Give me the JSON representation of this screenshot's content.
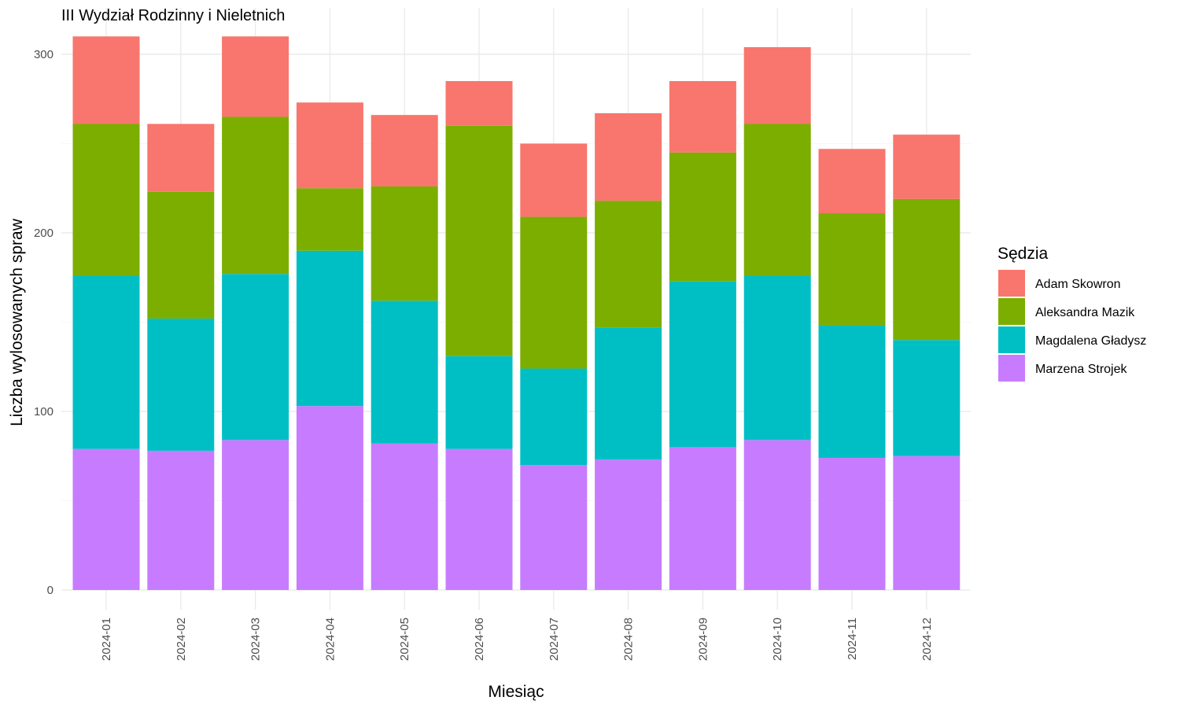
{
  "chart_data": {
    "type": "bar",
    "stacked": true,
    "title": "III Wydział Rodzinny i Nieletnich",
    "xlabel": "Miesiąc",
    "ylabel": "Liczba wylosowanych spraw",
    "ylim": [
      0,
      310
    ],
    "yticks": [
      0,
      100,
      200,
      300
    ],
    "grid": true,
    "legend_title": "Sędzia",
    "legend_position": "right",
    "categories": [
      "2024-01",
      "2024-02",
      "2024-03",
      "2024-04",
      "2024-05",
      "2024-06",
      "2024-07",
      "2024-08",
      "2024-09",
      "2024-10",
      "2024-11",
      "2024-12"
    ],
    "series": [
      {
        "name": "Marzena Strojek",
        "color": "#C77CFF",
        "values": [
          79,
          78,
          84,
          103,
          82,
          79,
          70,
          73,
          80,
          84,
          74,
          75
        ]
      },
      {
        "name": "Magdalena Gładysz",
        "color": "#00BFC4",
        "values": [
          97,
          74,
          93,
          87,
          80,
          52,
          54,
          74,
          93,
          92,
          74,
          65
        ]
      },
      {
        "name": "Aleksandra Mazik",
        "color": "#7CAE00",
        "values": [
          85,
          71,
          88,
          35,
          64,
          129,
          85,
          71,
          72,
          85,
          63,
          79
        ]
      },
      {
        "name": "Adam Skowron",
        "color": "#F8766D",
        "values": [
          49,
          38,
          45,
          48,
          40,
          25,
          41,
          49,
          40,
          43,
          36,
          36
        ]
      }
    ],
    "legend_order": [
      "Adam Skowron",
      "Aleksandra Mazik",
      "Magdalena Gładysz",
      "Marzena Strojek"
    ]
  }
}
